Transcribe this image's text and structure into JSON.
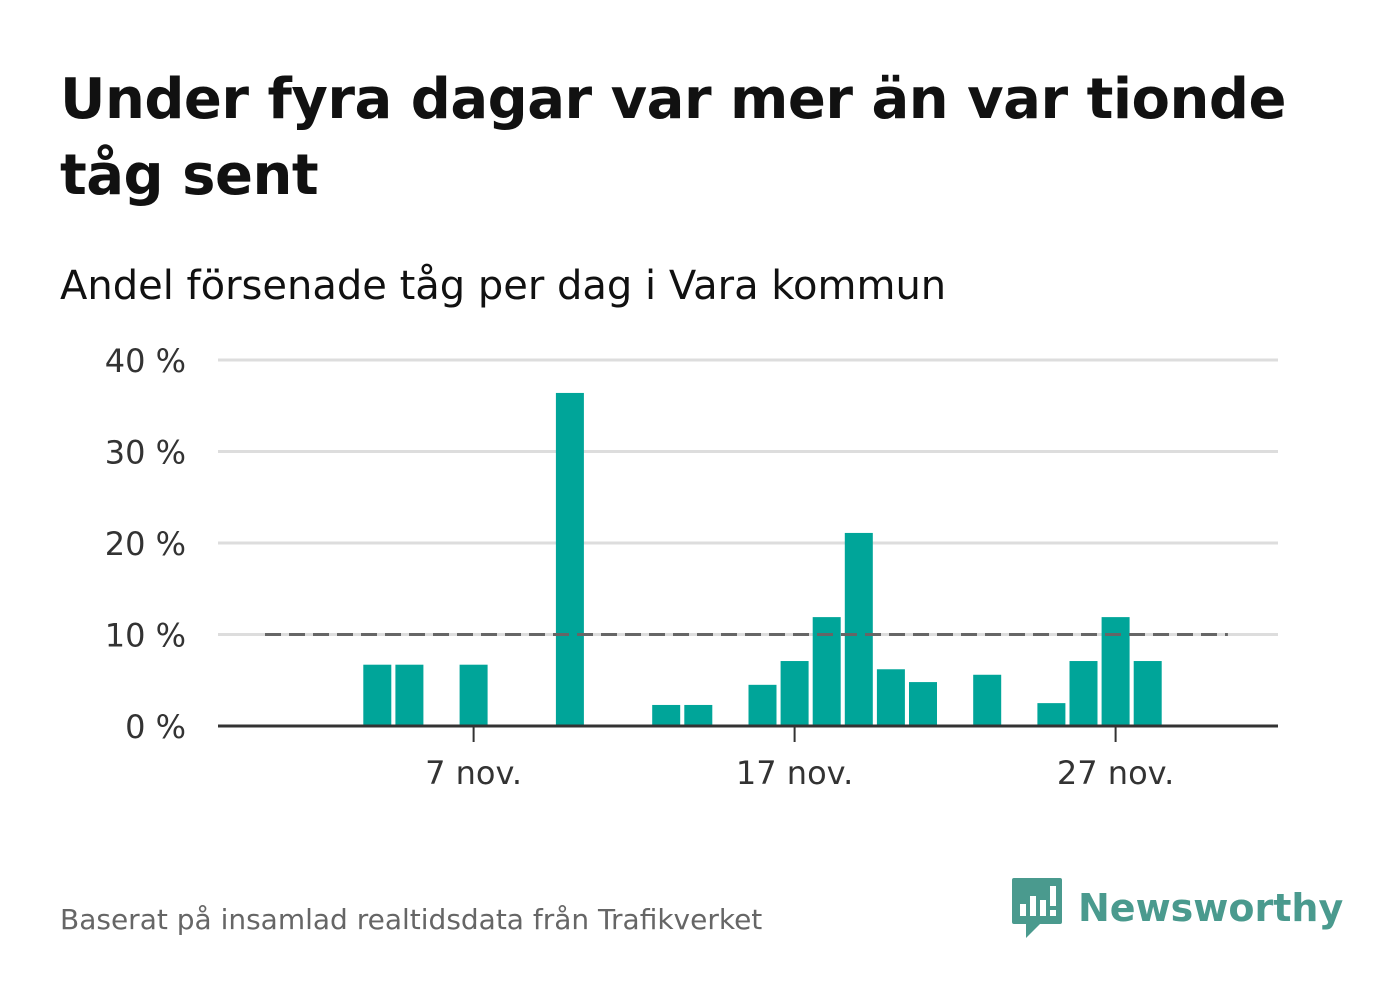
{
  "title": "Under fyra dagar var mer än var tionde tåg sent",
  "subtitle": "Andel försenade tåg per dag i Vara kommun",
  "footer": {
    "source": "Baserat på insamlad realtidsdata från Trafikverket",
    "brand": "Newsworthy"
  },
  "colors": {
    "bar": "#00a599",
    "reference_line": "#666666",
    "grid": "#dddddd",
    "axis": "#333333",
    "brand": "#4a9a8e"
  },
  "chart_data": {
    "type": "bar",
    "x_unit": "day of November",
    "x": [
      1,
      2,
      3,
      4,
      5,
      6,
      7,
      8,
      9,
      10,
      11,
      12,
      13,
      14,
      15,
      16,
      17,
      18,
      19,
      20,
      21,
      22,
      23,
      24,
      25,
      26,
      27,
      28,
      29,
      30
    ],
    "values": [
      0,
      0,
      0,
      6.7,
      6.7,
      0,
      6.7,
      0,
      0,
      36.4,
      0,
      0,
      2.3,
      2.3,
      0,
      4.5,
      7.1,
      11.9,
      21.1,
      6.2,
      4.8,
      0,
      5.6,
      0,
      2.5,
      7.1,
      11.9,
      7.1,
      0,
      0
    ],
    "reference_line": {
      "value": 10,
      "style": "dashed",
      "from_x": 1,
      "to_x": 30
    },
    "xticks": [
      {
        "x": 7,
        "label": "7 nov."
      },
      {
        "x": 17,
        "label": "17 nov."
      },
      {
        "x": 27,
        "label": "27 nov."
      }
    ],
    "yticks": [
      {
        "value": 0,
        "label": "0 %"
      },
      {
        "value": 10,
        "label": "10 %"
      },
      {
        "value": 20,
        "label": "20 %"
      },
      {
        "value": 30,
        "label": "30 %"
      },
      {
        "value": 40,
        "label": "40 %"
      }
    ],
    "ylim": [
      0,
      40
    ],
    "grid": true,
    "legend": "none"
  }
}
